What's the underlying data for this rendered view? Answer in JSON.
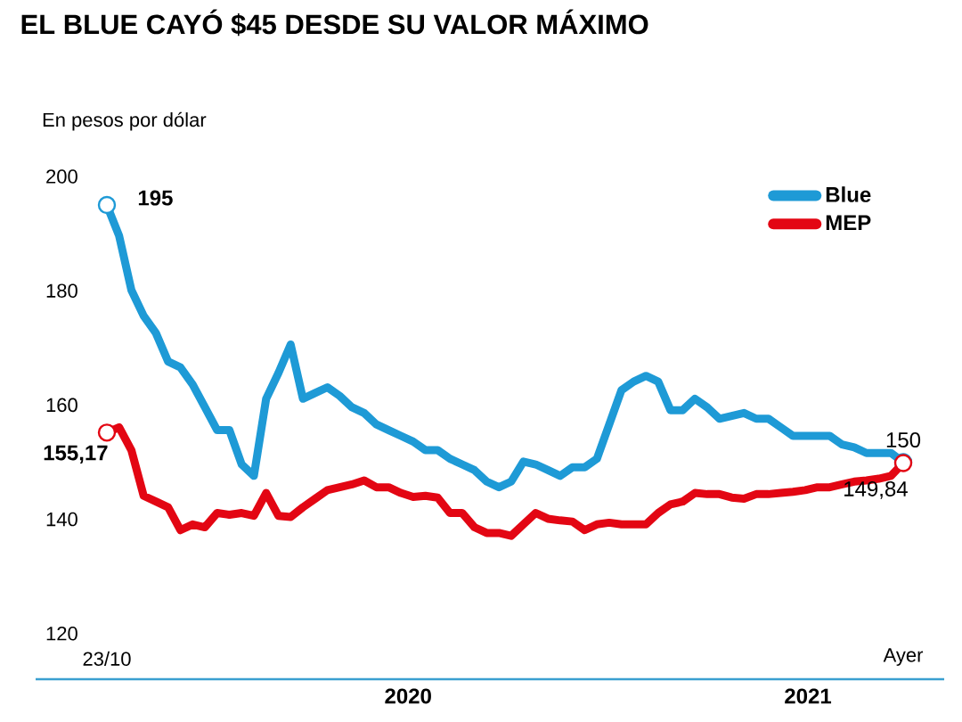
{
  "chart_data": {
    "type": "line",
    "title": "EL BLUE CAYÓ $45 DESDE SU VALOR MÁXIMO",
    "ylabel": "En pesos por dólar",
    "categories": [
      "23/10",
      null,
      null,
      null,
      null,
      null,
      null,
      null,
      null,
      null,
      null,
      null,
      null,
      null,
      null,
      null,
      null,
      null,
      null,
      null,
      null,
      null,
      null,
      null,
      null,
      null,
      null,
      null,
      null,
      null,
      null,
      null,
      null,
      null,
      null,
      null,
      null,
      null,
      null,
      null,
      null,
      null,
      null,
      null,
      null,
      null,
      null,
      null,
      null,
      null,
      null,
      null,
      null,
      null,
      null,
      null,
      null,
      null,
      null,
      null,
      null,
      null,
      null,
      null,
      null,
      "Ayer"
    ],
    "series": [
      {
        "name": "Blue",
        "color": "#1e9ad6",
        "values": [
          195,
          189.6,
          180.1,
          175.6,
          172.6,
          167.6,
          166.6,
          163.6,
          159.6,
          155.6,
          155.6,
          149.6,
          147.6,
          161.1,
          165.6,
          170.6,
          161.1,
          162.1,
          163.1,
          161.6,
          159.6,
          158.6,
          156.6,
          155.6,
          154.6,
          153.6,
          152.1,
          152.1,
          150.6,
          149.6,
          148.6,
          146.6,
          145.6,
          146.6,
          150.1,
          149.6,
          148.6,
          147.6,
          149.1,
          149.1,
          150.6,
          156.6,
          162.6,
          164.1,
          165.1,
          164.1,
          159.1,
          159.1,
          161.1,
          159.6,
          157.6,
          158.1,
          158.6,
          157.6,
          157.6,
          156.1,
          154.6,
          154.6,
          154.6,
          154.6,
          153.1,
          152.6,
          151.6,
          151.6,
          151.6,
          150
        ],
        "value_labels": [
          "195",
          null,
          null,
          null,
          null,
          null,
          null,
          null,
          null,
          null,
          null,
          null,
          null,
          null,
          null,
          null,
          null,
          null,
          null,
          null,
          null,
          null,
          null,
          null,
          null,
          null,
          null,
          null,
          null,
          null,
          null,
          null,
          null,
          null,
          null,
          null,
          null,
          null,
          null,
          null,
          null,
          null,
          null,
          null,
          null,
          null,
          null,
          null,
          null,
          null,
          null,
          null,
          null,
          null,
          null,
          null,
          null,
          null,
          null,
          null,
          null,
          null,
          null,
          null,
          null,
          "150"
        ]
      },
      {
        "name": "MEP",
        "color": "#e30613",
        "values": [
          155.17,
          156.1,
          152.1,
          144.1,
          143.1,
          142.1,
          138.1,
          139.1,
          138.6,
          141.1,
          140.8,
          141.1,
          140.6,
          144.6,
          140.6,
          140.4,
          142.1,
          143.6,
          145.1,
          145.6,
          146.1,
          146.8,
          145.6,
          145.6,
          144.6,
          143.9,
          144.1,
          143.8,
          141.1,
          141.1,
          138.6,
          137.6,
          137.6,
          137.1,
          139.1,
          141.1,
          140.1,
          139.8,
          139.6,
          138.1,
          139.1,
          139.4,
          139.1,
          139.1,
          139.1,
          141.1,
          142.6,
          143.1,
          144.6,
          144.4,
          144.4,
          143.8,
          143.6,
          144.4,
          144.4,
          144.6,
          144.8,
          145.1,
          145.6,
          145.6,
          146.1,
          146.6,
          146.8,
          147.1,
          147.6,
          149.84
        ],
        "value_labels": [
          "155,17",
          null,
          null,
          null,
          null,
          null,
          null,
          null,
          null,
          null,
          null,
          null,
          null,
          null,
          null,
          null,
          null,
          null,
          null,
          null,
          null,
          null,
          null,
          null,
          null,
          null,
          null,
          null,
          null,
          null,
          null,
          null,
          null,
          null,
          null,
          null,
          null,
          null,
          null,
          null,
          null,
          null,
          null,
          null,
          null,
          null,
          null,
          null,
          null,
          null,
          null,
          null,
          null,
          null,
          null,
          null,
          null,
          null,
          null,
          null,
          null,
          null,
          null,
          null,
          null,
          "149,84"
        ]
      }
    ],
    "ylim": [
      112,
      200
    ],
    "yticks": [
      120,
      140,
      160,
      180,
      200
    ],
    "legend": "top right",
    "annotations": [
      "2020",
      "2021"
    ]
  }
}
